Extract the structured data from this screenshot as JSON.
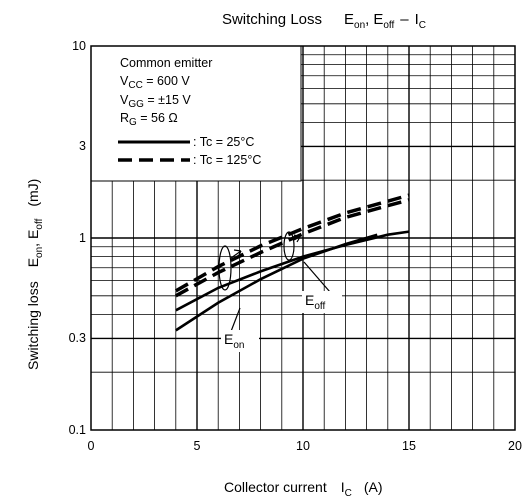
{
  "chart_data": {
    "type": "line",
    "title": {
      "main": "Switching Loss",
      "e1": "E",
      "e1_sub": "on",
      "sep": ",",
      "e2": "E",
      "e2_sub": "off",
      "dash": "–",
      "ic": "I",
      "ic_sub": "C"
    },
    "xlabel": {
      "main": "Collector current",
      "sym": "I",
      "sym_sub": "C",
      "unit": "(A)"
    },
    "ylabel": {
      "main": "Switching loss",
      "e1": "E",
      "e1_sub": "on",
      "sep": ",",
      "e2": "E",
      "e2_sub": "off",
      "unit": "(mJ)"
    },
    "xlim": [
      0,
      20
    ],
    "ylim": [
      0.1,
      10
    ],
    "yscale": "log",
    "grid": true,
    "x_ticks": [
      "0",
      "5",
      "10",
      "15",
      "20"
    ],
    "y_ticks": [
      {
        "value": 0.1,
        "label": "0.1"
      },
      {
        "value": 0.3,
        "label": "0.3"
      },
      {
        "value": 1,
        "label": "1"
      },
      {
        "value": 3,
        "label": "3"
      },
      {
        "value": 10,
        "label": "10"
      }
    ],
    "legend": {
      "placement": "top-left",
      "conditions": [
        "Common emitter",
        {
          "sym": "V",
          "sub": "CC",
          "rest": " = 600 V"
        },
        {
          "sym": "V",
          "sub": "GG",
          "rest": " = ±15 V"
        },
        {
          "sym": "R",
          "sub": "G",
          "rest": " = 56 Ω"
        }
      ],
      "entries": [
        {
          "text": ": Tc = 25°C",
          "style": "solid"
        },
        {
          "text": ": Tc = 125°C",
          "style": "dashed"
        }
      ]
    },
    "annotations": [
      {
        "sym": "E",
        "sub": "off"
      },
      {
        "sym": "E",
        "sub": "on"
      }
    ],
    "series": [
      {
        "label": "Eoff (Tc = 25°C)",
        "style": "solid",
        "x": [
          4,
          6,
          8,
          10,
          12,
          14,
          15
        ],
        "y": [
          0.42,
          0.55,
          0.67,
          0.8,
          0.92,
          1.04,
          1.08
        ]
      },
      {
        "label": "Eon (Tc = 25°C)",
        "style": "solid",
        "x": [
          4,
          6,
          8,
          10,
          12,
          13.5
        ],
        "y": [
          0.33,
          0.46,
          0.61,
          0.78,
          0.93,
          1.04
        ]
      },
      {
        "label": "Eoff (Tc = 125°C)",
        "style": "dashed",
        "x": [
          4,
          6,
          8,
          10,
          12,
          15
        ],
        "y": [
          0.5,
          0.66,
          0.84,
          1.05,
          1.28,
          1.58
        ]
      },
      {
        "label": "Eon (Tc = 125°C)",
        "style": "dashed",
        "x": [
          4,
          6,
          8,
          10,
          12,
          15
        ],
        "y": [
          0.53,
          0.71,
          0.91,
          1.12,
          1.35,
          1.67
        ]
      }
    ]
  }
}
